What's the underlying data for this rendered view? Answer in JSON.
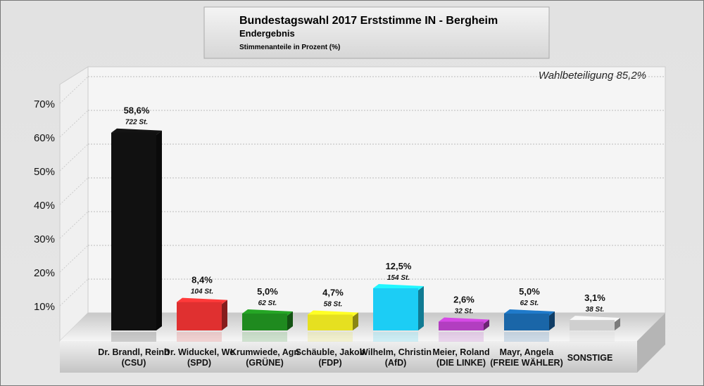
{
  "chart_data": {
    "type": "bar",
    "title": "Bundestagswahl 2017 Erststimme IN - Bergheim",
    "subtitle": "Endergebnis",
    "ylabel": "Stimmenanteile in Prozent (%)",
    "annotation": "Wahlbeteiligung 85,2%",
    "ylim": [
      0,
      70
    ],
    "yticks": [
      "10%",
      "20%",
      "30%",
      "40%",
      "50%",
      "60%",
      "70%"
    ],
    "grid": true,
    "categories": [
      [
        "Dr. Brandl, Reinh",
        "(CSU)"
      ],
      [
        "Dr. Widuckel, We",
        "(SPD)"
      ],
      [
        "Krumwiede, Agn",
        "(GRÜNE)"
      ],
      [
        "Schäuble, Jakob",
        "(FDP)"
      ],
      [
        "Wilhelm, Christin",
        "(AfD)"
      ],
      [
        "Meier, Roland",
        "(DIE LINKE)"
      ],
      [
        "Mayr, Angela",
        "(FREIE WÄHLER)"
      ],
      [
        "SONSTIGE",
        ""
      ]
    ],
    "values": [
      58.6,
      8.4,
      5.0,
      4.7,
      12.5,
      2.6,
      5.0,
      3.1
    ],
    "value_labels": [
      "58,6%",
      "8,4%",
      "5,0%",
      "4,7%",
      "12,5%",
      "2,6%",
      "5,0%",
      "3,1%"
    ],
    "votes": [
      "722 St.",
      "104 St.",
      "62 St.",
      "58 St.",
      "154 St.",
      "32 St.",
      "62 St.",
      "38 St."
    ],
    "colors": [
      "#111111",
      "#e03030",
      "#1f8a1f",
      "#e6e020",
      "#1ccdf5",
      "#b23ec0",
      "#1a66a8",
      "#cfcfcf"
    ]
  }
}
